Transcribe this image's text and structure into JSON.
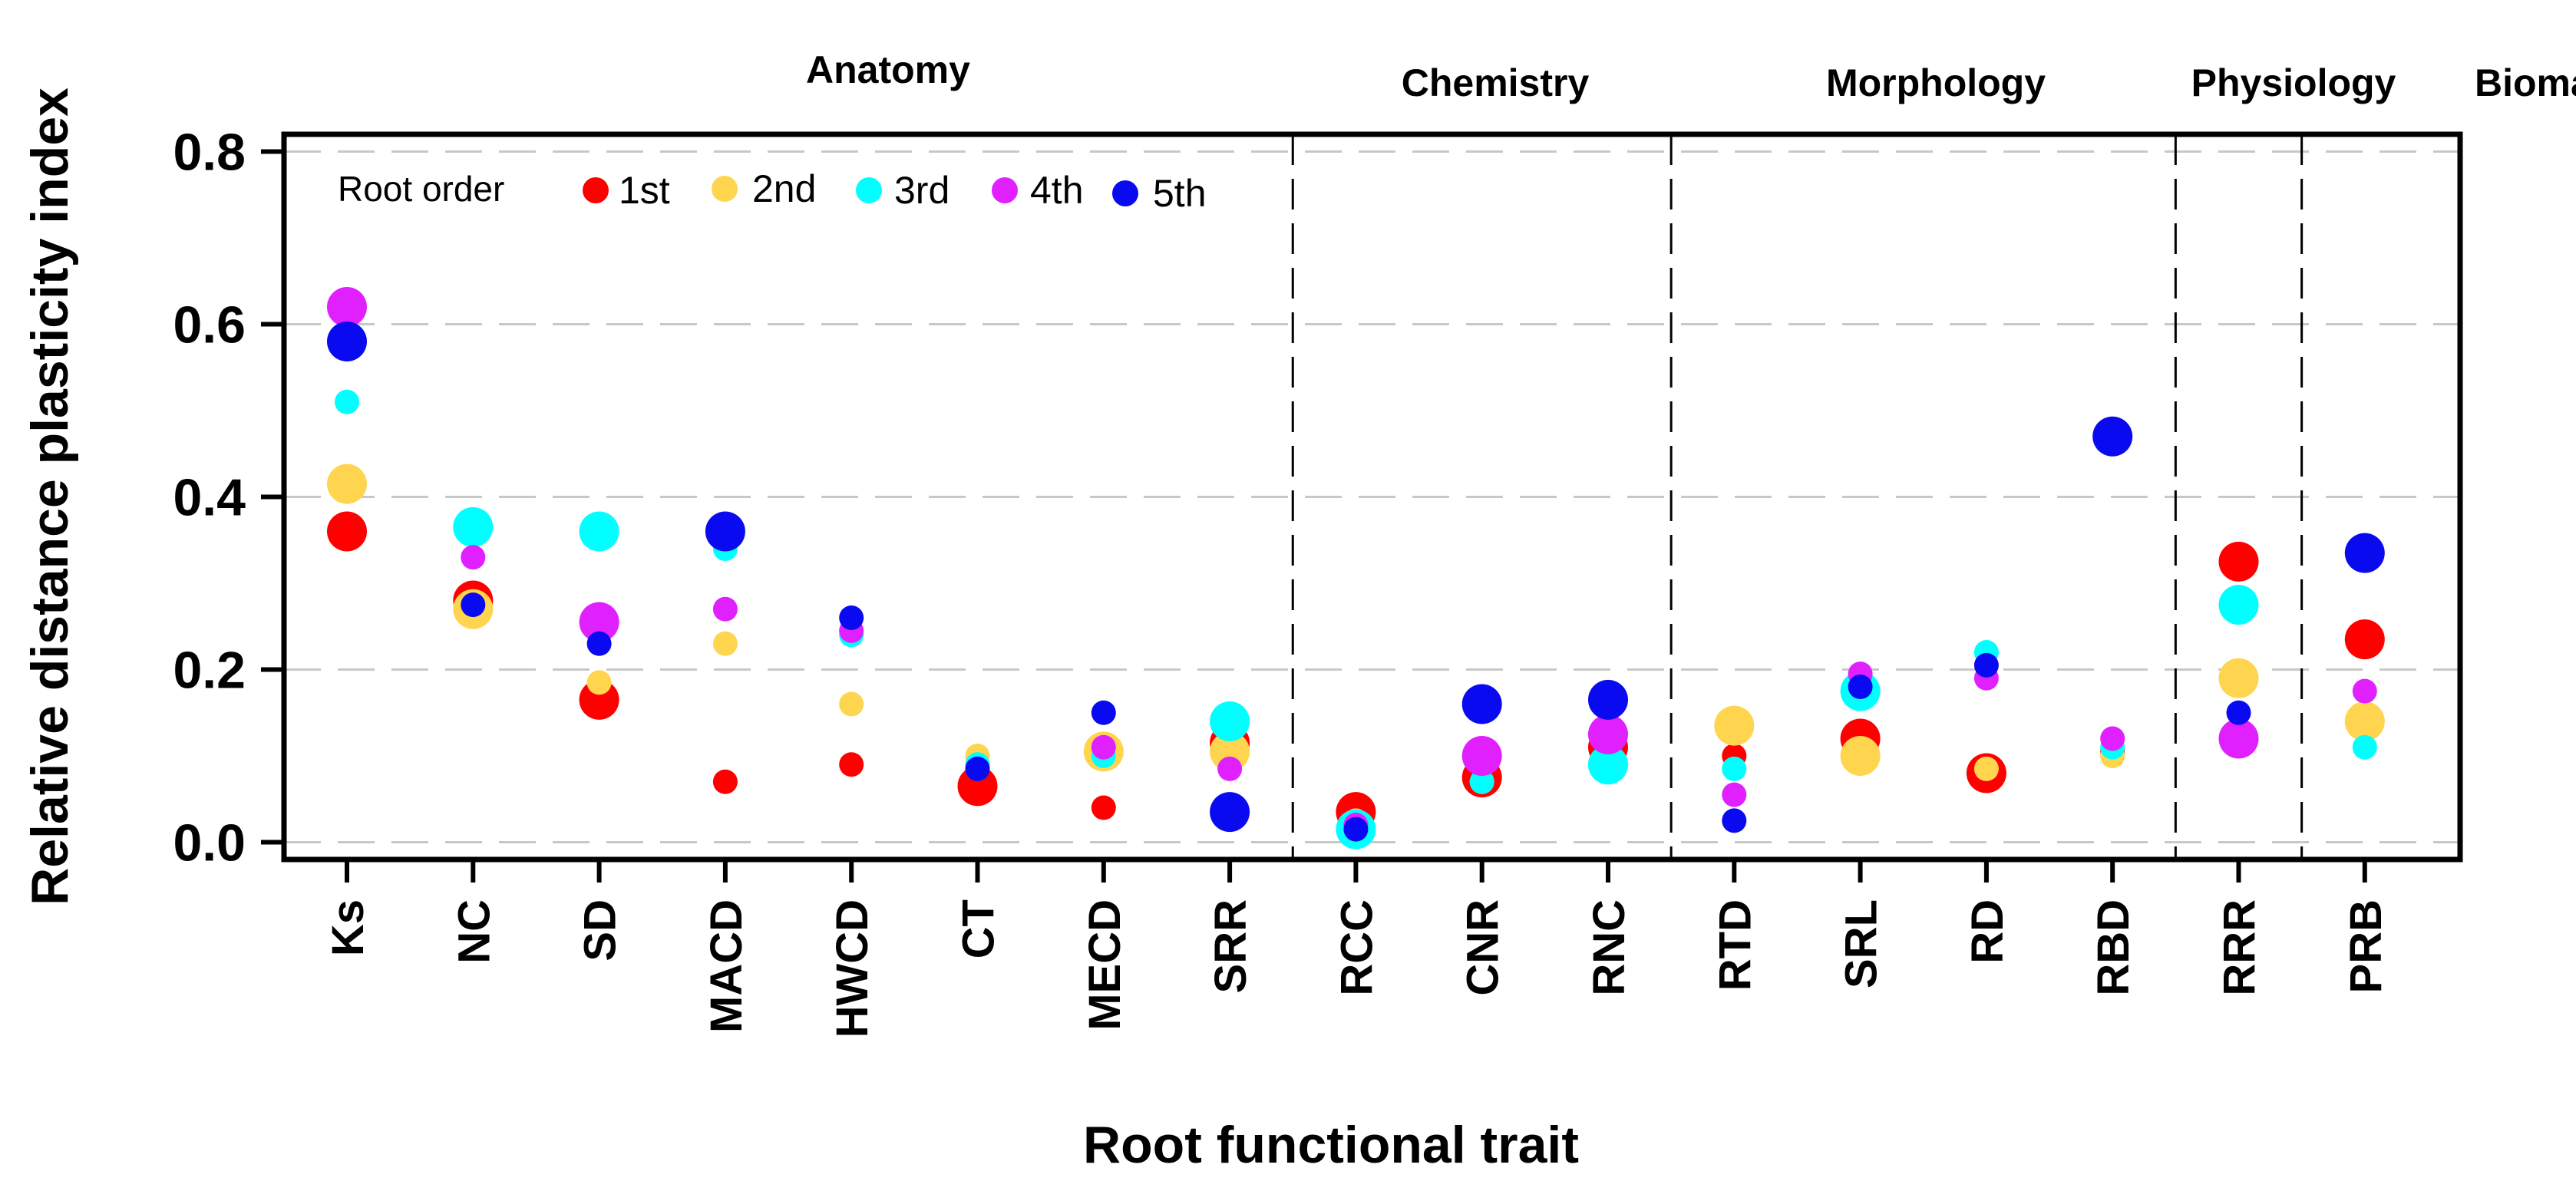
{
  "chart_data": {
    "type": "scatter",
    "title": "",
    "xlabel": "Root functional trait",
    "ylabel": "Relative distance plasticity index",
    "ylim": [
      -0.02,
      0.82
    ],
    "yticks": [
      0.0,
      0.2,
      0.4,
      0.6,
      0.8
    ],
    "ytick_labels": [
      "0.0",
      "0.2",
      "0.4",
      "0.6",
      "0.8"
    ],
    "grid": "horizontal dashed",
    "categories": [
      "Ks",
      "NC",
      "SD",
      "MACD",
      "HWCD",
      "CT",
      "MECD",
      "SRR",
      "RCC",
      "CNR",
      "RNC",
      "RTD",
      "SRL",
      "RD",
      "RBD",
      "RRR",
      "PRB"
    ],
    "groups": [
      {
        "label": "Anatomy",
        "categories": [
          "Ks",
          "NC",
          "SD",
          "MACD",
          "HWCD",
          "CT",
          "MECD",
          "SRR"
        ]
      },
      {
        "label": "Chemistry",
        "categories": [
          "RCC",
          "CNR",
          "RNC"
        ]
      },
      {
        "label": "Morphology",
        "categories": [
          "RTD",
          "SRL",
          "RD",
          "RBD"
        ]
      },
      {
        "label": "Physiology",
        "categories": [
          "RRR"
        ]
      },
      {
        "label": "Biomass",
        "categories": [
          "PRB"
        ]
      }
    ],
    "legend": {
      "title": "Root order",
      "placement": "top-left"
    },
    "series": [
      {
        "name": "1st",
        "color": "#ff0000",
        "values": [
          0.36,
          0.28,
          0.165,
          0.07,
          0.09,
          0.065,
          0.04,
          0.115,
          0.035,
          0.075,
          0.11,
          0.1,
          0.12,
          0.08,
          0.105,
          0.325,
          0.235
        ],
        "sizes": [
          3,
          3,
          3,
          1,
          1,
          3,
          1,
          3,
          3,
          3,
          3,
          1,
          3,
          3,
          1,
          3,
          3
        ]
      },
      {
        "name": "2nd",
        "color": "#ffd54f",
        "values": [
          0.415,
          0.27,
          0.185,
          0.23,
          0.16,
          0.1,
          0.105,
          0.105,
          0.025,
          0.07,
          0.1,
          0.135,
          0.1,
          0.085,
          0.1,
          0.19,
          0.14
        ],
        "sizes": [
          3,
          3,
          1,
          1,
          1,
          1,
          3,
          3,
          1,
          1,
          1,
          3,
          3,
          1,
          1,
          3,
          3
        ]
      },
      {
        "name": "3rd",
        "color": "#00ffff",
        "values": [
          0.51,
          0.365,
          0.36,
          0.34,
          0.24,
          0.09,
          0.1,
          0.14,
          0.015,
          0.07,
          0.09,
          0.085,
          0.175,
          0.22,
          0.11,
          0.275,
          0.11
        ],
        "sizes": [
          1,
          3,
          3,
          1,
          1,
          1,
          1,
          3,
          3,
          1,
          3,
          1,
          3,
          1,
          1,
          3,
          1
        ]
      },
      {
        "name": "4th",
        "color": "#e020ff",
        "values": [
          0.62,
          0.33,
          0.255,
          0.27,
          0.245,
          0.085,
          0.11,
          0.085,
          0.02,
          0.1,
          0.125,
          0.055,
          0.195,
          0.19,
          0.12,
          0.12,
          0.175
        ],
        "sizes": [
          3,
          1,
          3,
          1,
          1,
          1,
          1,
          1,
          1,
          3,
          3,
          1,
          1,
          1,
          1,
          3,
          1
        ]
      },
      {
        "name": "5th",
        "color": "#0a0af0",
        "values": [
          0.58,
          0.275,
          0.23,
          0.36,
          0.26,
          0.085,
          0.15,
          0.035,
          0.015,
          0.16,
          0.165,
          0.025,
          0.18,
          0.205,
          0.47,
          0.15,
          0.335
        ],
        "sizes": [
          3,
          1,
          1,
          3,
          1,
          1,
          1,
          3,
          1,
          3,
          3,
          1,
          1,
          1,
          3,
          1,
          3
        ]
      }
    ]
  }
}
